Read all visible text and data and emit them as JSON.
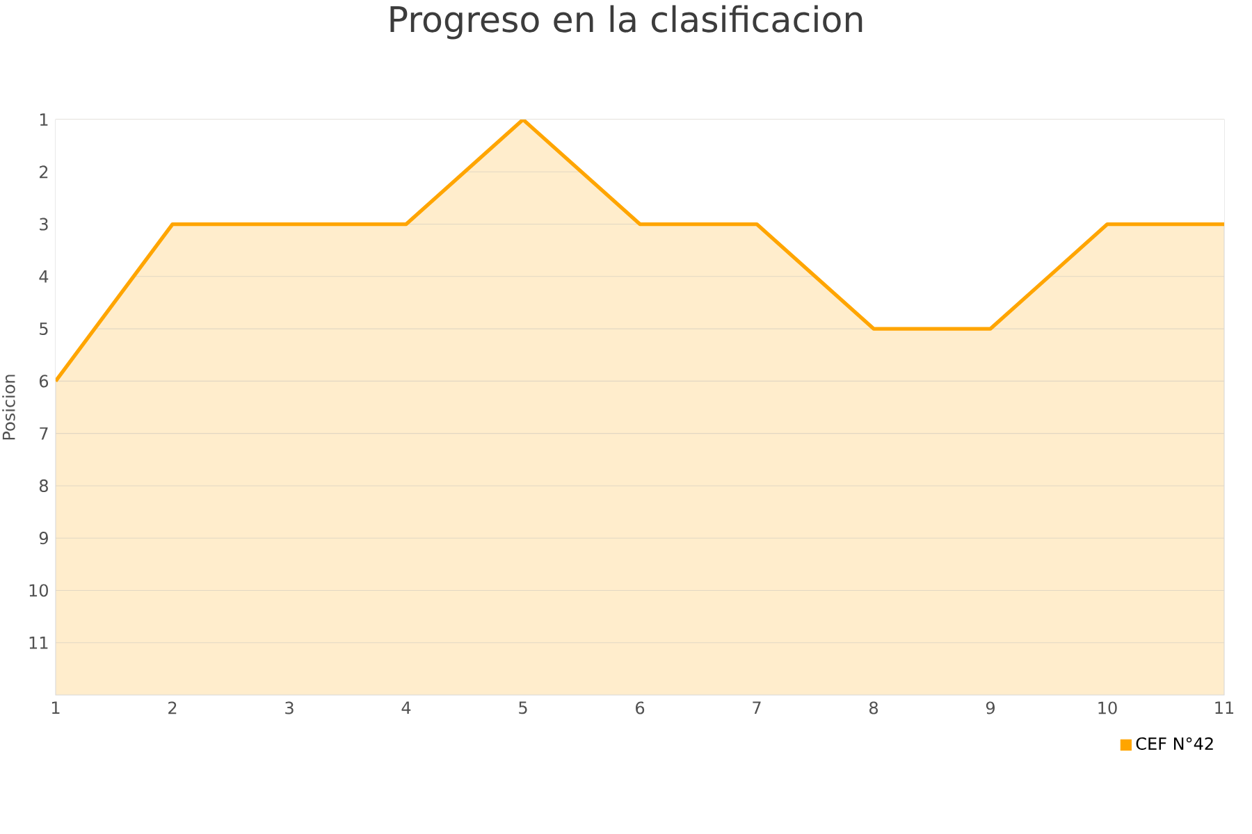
{
  "chart_data": {
    "type": "area",
    "title": "Progreso en la clasificacion",
    "ylabel": "Posicion",
    "x": [
      1,
      2,
      3,
      4,
      5,
      6,
      7,
      8,
      9,
      10,
      11
    ],
    "series": [
      {
        "name": "CEF N°42",
        "color": "#ffa500",
        "values": [
          6,
          3,
          3,
          3,
          1,
          3,
          3,
          5,
          5,
          3,
          3
        ]
      }
    ],
    "xlim": [
      1,
      11
    ],
    "xticks": [
      1,
      2,
      3,
      4,
      5,
      6,
      7,
      8,
      9,
      10,
      11
    ],
    "ylim": [
      12,
      1
    ],
    "yticks": [
      1,
      2,
      3,
      4,
      5,
      6,
      7,
      8,
      9,
      10,
      11
    ],
    "grid": "y",
    "legend": "bottom right"
  }
}
